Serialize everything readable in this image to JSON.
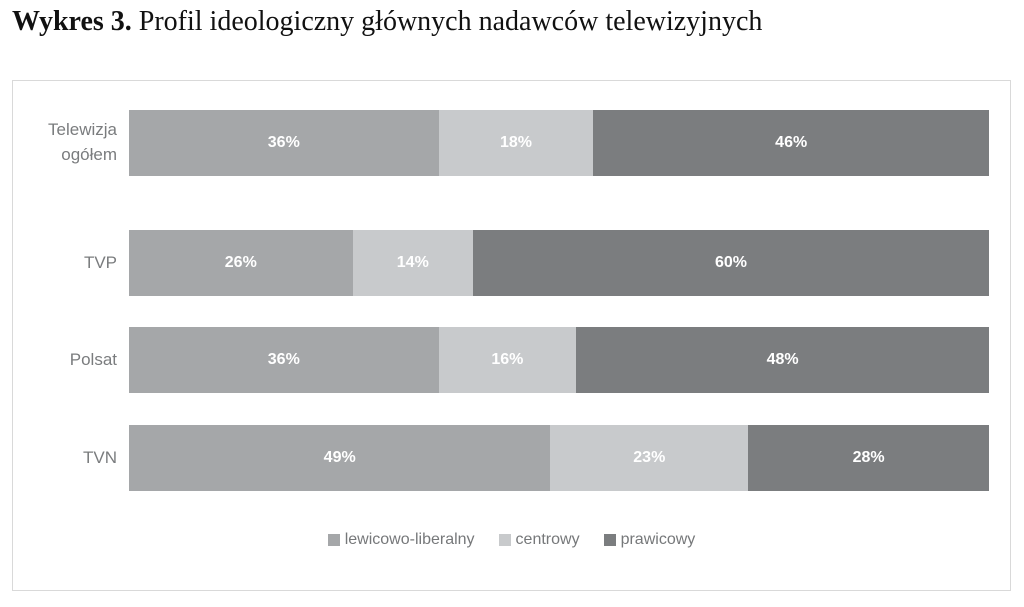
{
  "title": {
    "prefix": "Wykres 3.",
    "rest": " Profil ideologiczny głównych nadawców telewizyjnych"
  },
  "chart_data": {
    "type": "bar",
    "orientation": "horizontal",
    "stacked": true,
    "title": "Wykres 3. Profil ideologiczny głównych nadawców telewizyjnych",
    "categories": [
      "Telewizja ogółem",
      "TVP",
      "Polsat",
      "TVN"
    ],
    "series": [
      {
        "name": "lewicowo-liberalny",
        "color": "#a5a7a9",
        "values": [
          36,
          26,
          36,
          49
        ]
      },
      {
        "name": "centrowy",
        "color": "#c8cacc",
        "values": [
          18,
          14,
          16,
          23
        ]
      },
      {
        "name": "prawicowy",
        "color": "#7b7d7f",
        "values": [
          46,
          60,
          48,
          28
        ]
      }
    ],
    "value_suffix": "%",
    "xlim": [
      0,
      100
    ],
    "grid": false,
    "legend_position": "bottom-center",
    "colors": {
      "frame_border": "#d9d9d9",
      "axis_text": "#7a7c7e",
      "value_label_text": "#ffffff"
    }
  }
}
